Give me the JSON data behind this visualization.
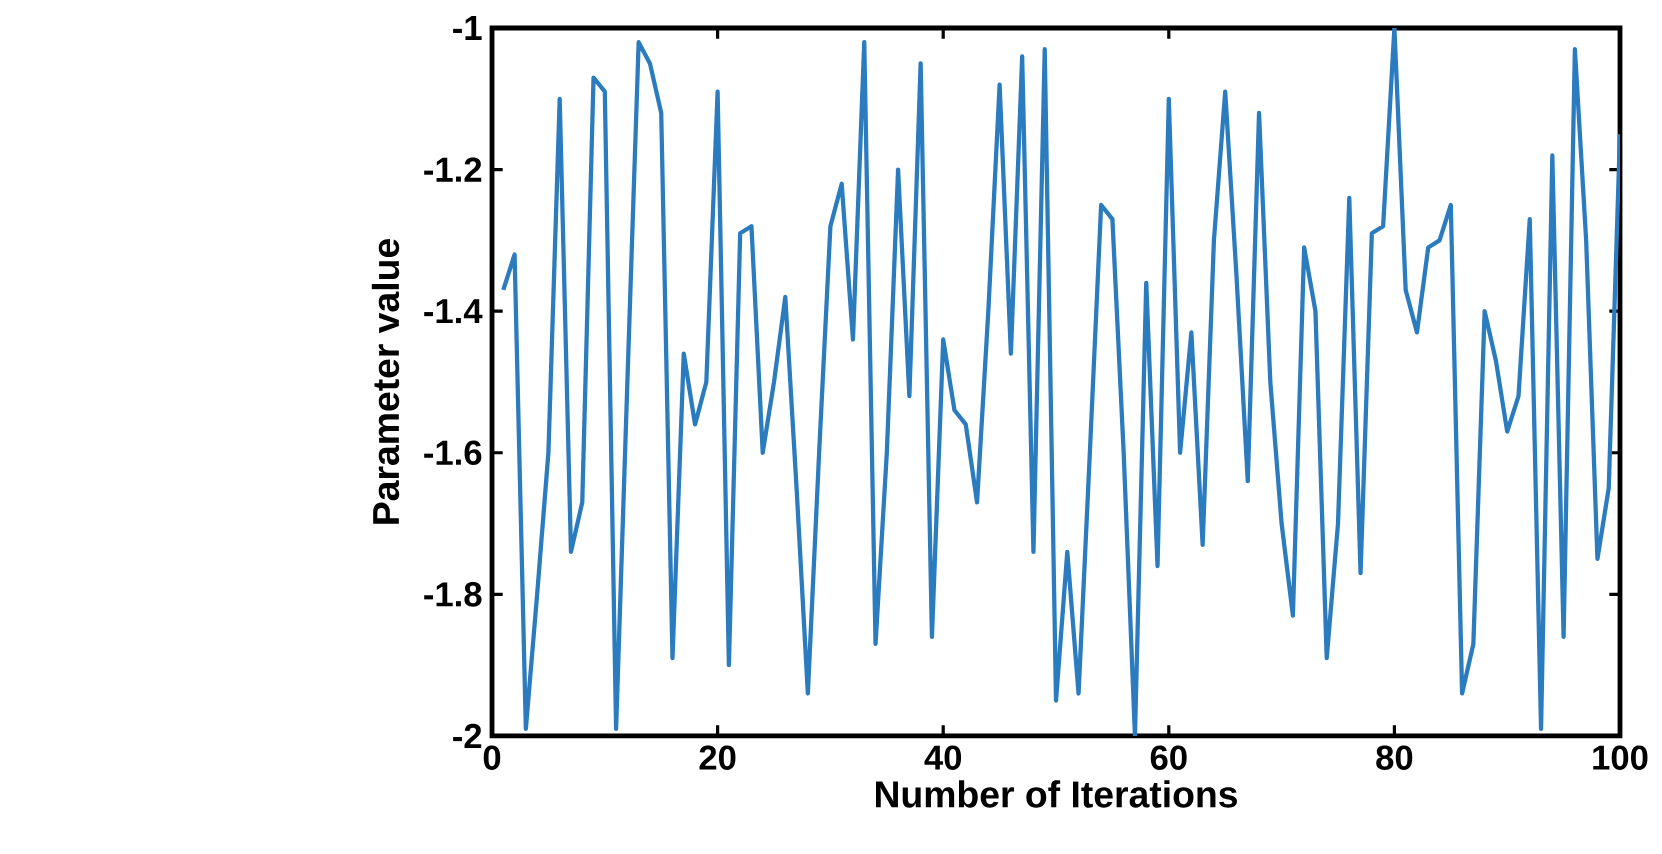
{
  "chart_data": {
    "type": "line",
    "xlabel": "Number of Iterations",
    "ylabel": "Parameter value",
    "x": [
      1,
      2,
      3,
      4,
      5,
      6,
      7,
      8,
      9,
      10,
      11,
      12,
      13,
      14,
      15,
      16,
      17,
      18,
      19,
      20,
      21,
      22,
      23,
      24,
      25,
      26,
      27,
      28,
      29,
      30,
      31,
      32,
      33,
      34,
      35,
      36,
      37,
      38,
      39,
      40,
      41,
      42,
      43,
      44,
      45,
      46,
      47,
      48,
      49,
      50,
      51,
      52,
      53,
      54,
      55,
      56,
      57,
      58,
      59,
      60,
      61,
      62,
      63,
      64,
      65,
      66,
      67,
      68,
      69,
      70,
      71,
      72,
      73,
      74,
      75,
      76,
      77,
      78,
      79,
      80,
      81,
      82,
      83,
      84,
      85,
      86,
      87,
      88,
      89,
      90,
      91,
      92,
      93,
      94,
      95,
      96,
      97,
      98,
      99,
      100
    ],
    "series": [
      {
        "color": "#2b7bbf",
        "values": [
          -1.37,
          -1.32,
          -1.99,
          -1.8,
          -1.6,
          -1.1,
          -1.74,
          -1.67,
          -1.07,
          -1.09,
          -1.99,
          -1.5,
          -1.02,
          -1.05,
          -1.12,
          -1.89,
          -1.46,
          -1.56,
          -1.5,
          -1.09,
          -1.9,
          -1.29,
          -1.28,
          -1.6,
          -1.5,
          -1.38,
          -1.65,
          -1.94,
          -1.6,
          -1.28,
          -1.22,
          -1.44,
          -1.02,
          -1.87,
          -1.6,
          -1.2,
          -1.52,
          -1.05,
          -1.86,
          -1.44,
          -1.54,
          -1.56,
          -1.67,
          -1.4,
          -1.08,
          -1.46,
          -1.04,
          -1.74,
          -1.03,
          -1.95,
          -1.74,
          -1.94,
          -1.6,
          -1.25,
          -1.27,
          -1.6,
          -2.0,
          -1.36,
          -1.76,
          -1.1,
          -1.6,
          -1.43,
          -1.73,
          -1.3,
          -1.09,
          -1.35,
          -1.64,
          -1.12,
          -1.5,
          -1.7,
          -1.83,
          -1.31,
          -1.4,
          -1.89,
          -1.7,
          -1.24,
          -1.77,
          -1.29,
          -1.28,
          -1.0,
          -1.37,
          -1.43,
          -1.31,
          -1.3,
          -1.25,
          -1.94,
          -1.87,
          -1.4,
          -1.47,
          -1.57,
          -1.52,
          -1.27,
          -1.99,
          -1.18,
          -1.86,
          -1.03,
          -1.3,
          -1.75,
          -1.65,
          -1.15
        ]
      }
    ],
    "xlim": [
      0,
      100
    ],
    "ylim": [
      -2,
      -1
    ],
    "xticks": [
      0,
      20,
      40,
      60,
      80,
      100
    ],
    "yticks": [
      -2,
      -1.8,
      -1.6,
      -1.4,
      -1.2,
      -1
    ],
    "marker": "none",
    "line_style": "solid"
  }
}
